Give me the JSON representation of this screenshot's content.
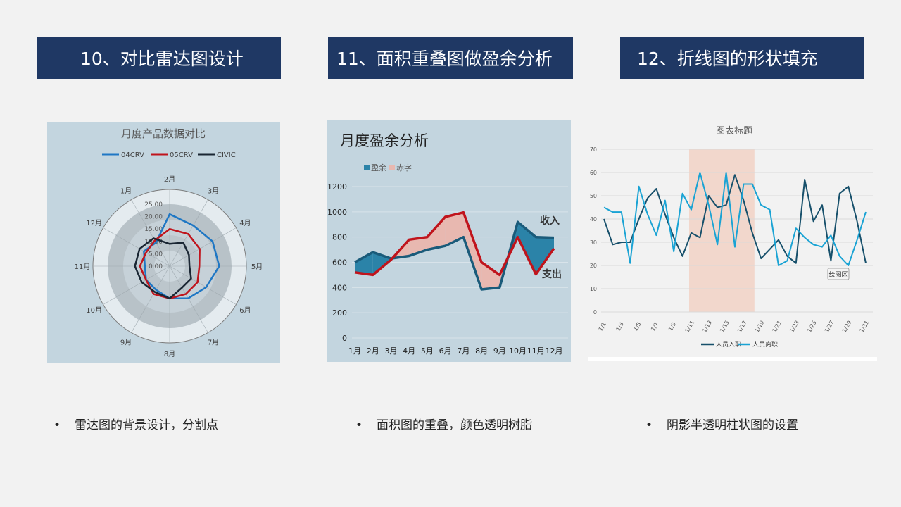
{
  "slides": {
    "section1_title": "10、对比雷达图设计",
    "section2_title": "11、面积重叠图做盈余分析",
    "section3_title": "12、折线图的形状填充",
    "bullet1": "雷达图的背景设计，分割点",
    "bullet2": "面积图的重叠，颜色透明树脂",
    "bullet3": "阴影半透明柱状图的设置",
    "bullet_symbol": "•"
  },
  "chart_data": [
    {
      "type": "radar",
      "title": "月度产品数据对比",
      "categories": [
        "2月",
        "3月",
        "4月",
        "5月",
        "6月",
        "7月",
        "8月",
        "9月",
        "10月",
        "11月",
        "12月",
        "1月"
      ],
      "rticks": [
        "0.00",
        "5.00",
        "10.00",
        "15.00",
        "20.00",
        "25.00"
      ],
      "rlim": [
        0,
        25
      ],
      "series": [
        {
          "name": "04CRV",
          "color": "#1f77c4",
          "values": [
            21,
            19,
            20,
            20,
            17,
            15,
            13,
            11,
            11,
            10,
            12,
            11
          ]
        },
        {
          "name": "05CRV",
          "color": "#c0141c",
          "values": [
            15,
            15,
            14,
            12,
            13,
            13,
            13,
            13,
            11,
            12,
            11,
            12
          ]
        },
        {
          "name": "CIVIC",
          "color": "#1a2633",
          "values": [
            9,
            11,
            9,
            8,
            10,
            10,
            13,
            12,
            13,
            14,
            14,
            13
          ]
        }
      ]
    },
    {
      "type": "area",
      "title": "月度盈余分析",
      "legend": [
        "盈余",
        "赤字"
      ],
      "categories": [
        "1月",
        "2月",
        "3月",
        "4月",
        "5月",
        "6月",
        "7月",
        "8月",
        "9月",
        "10月",
        "11月",
        "12月"
      ],
      "ylim": [
        0,
        1200
      ],
      "yticks": [
        0,
        200,
        400,
        600,
        800,
        1000,
        1200
      ],
      "series": [
        {
          "name": "收入",
          "color": "#1a5b7a",
          "values": [
            600,
            680,
            630,
            650,
            700,
            730,
            800,
            385,
            400,
            920,
            800,
            795
          ]
        },
        {
          "name": "支出",
          "color": "#c0141c",
          "values": [
            520,
            500,
            620,
            780,
            800,
            960,
            995,
            600,
            500,
            800,
            505,
            710
          ]
        }
      ],
      "surplus_color": "#2b83a8",
      "deficit_color": "#e8b8b0"
    },
    {
      "type": "line",
      "title": "图表标题",
      "x": [
        "1/1",
        "1/2",
        "1/3",
        "1/4",
        "1/5",
        "1/6",
        "1/7",
        "1/8",
        "1/9",
        "1/10",
        "1/11",
        "1/12",
        "1/13",
        "1/14",
        "1/15",
        "1/16",
        "1/17",
        "1/18",
        "1/19",
        "1/20",
        "1/21",
        "1/22",
        "1/23",
        "1/24",
        "1/25",
        "1/26",
        "1/27",
        "1/28",
        "1/29",
        "1/30",
        "1/31"
      ],
      "xticks": [
        "1/1",
        "1/3",
        "1/5",
        "1/7",
        "1/9",
        "1/11",
        "1/13",
        "1/15",
        "1/17",
        "1/19",
        "1/21",
        "1/23",
        "1/25",
        "1/27",
        "1/29",
        "1/31"
      ],
      "ylim": [
        0,
        70
      ],
      "yticks": [
        0,
        10,
        20,
        30,
        40,
        50,
        60,
        70
      ],
      "shaded_range": [
        "1/11",
        "1/18"
      ],
      "annotation": "绘图区",
      "series": [
        {
          "name": "人员入职",
          "color": "#17506b",
          "values": [
            40,
            29,
            30,
            30,
            40,
            49,
            53,
            42,
            32,
            24,
            34,
            32,
            50,
            45,
            46,
            59,
            48,
            34,
            23,
            27,
            31,
            24,
            21,
            57,
            39,
            46,
            22,
            51,
            54,
            39,
            21
          ]
        },
        {
          "name": "人员离职",
          "color": "#1aa3d4",
          "values": [
            45,
            43,
            43,
            21,
            54,
            42,
            33,
            48,
            26,
            51,
            44,
            60,
            46,
            29,
            60,
            28,
            55,
            55,
            46,
            44,
            20,
            22,
            36,
            32,
            29,
            28,
            33,
            24,
            20,
            31,
            43
          ]
        }
      ]
    }
  ]
}
